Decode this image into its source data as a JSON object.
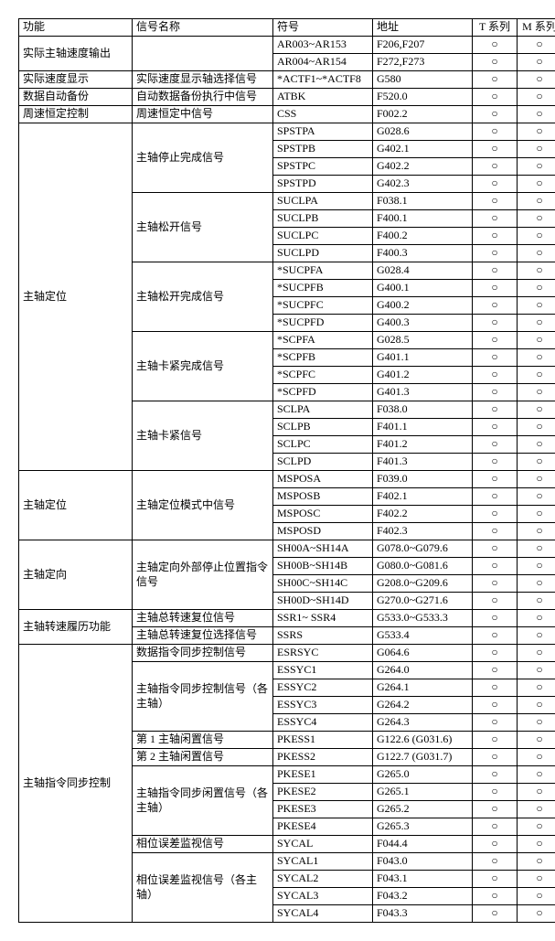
{
  "headers": [
    "功能",
    "信号名称",
    "符号",
    "地址",
    "T 系列",
    "M 系列"
  ],
  "rows": [
    {
      "f": "实际主轴速度输出",
      "fspan": 2,
      "s": "",
      "sspan": 2,
      "y": "AR003~AR153",
      "a": "F206,F207",
      "t": "○",
      "m": "○"
    },
    {
      "y": "AR004~AR154",
      "a": "F272,F273",
      "t": "○",
      "m": "○"
    },
    {
      "f": "实际速度显示",
      "fspan": 1,
      "s": "实际速度显示轴选择信号",
      "sspan": 1,
      "y": "*ACTF1~*ACTF8",
      "a": "G580",
      "t": "○",
      "m": "○"
    },
    {
      "f": "数据自动备份",
      "fspan": 1,
      "s": "自动数据备份执行中信号",
      "sspan": 1,
      "y": "ATBK",
      "a": "F520.0",
      "t": "○",
      "m": "○"
    },
    {
      "f": "周速恒定控制",
      "fspan": 1,
      "s": "周速恒定中信号",
      "sspan": 1,
      "y": "CSS",
      "a": "F002.2",
      "t": "○",
      "m": "○"
    },
    {
      "f": "主轴定位",
      "fspan": 20,
      "s": "主轴停止完成信号",
      "sspan": 4,
      "y": "SPSTPA",
      "a": "G028.6",
      "t": "○",
      "m": "○"
    },
    {
      "y": "SPSTPB",
      "a": "G402.1",
      "t": "○",
      "m": "○"
    },
    {
      "y": "SPSTPC",
      "a": "G402.2",
      "t": "○",
      "m": "○"
    },
    {
      "y": "SPSTPD",
      "a": "G402.3",
      "t": "○",
      "m": "○"
    },
    {
      "s": "主轴松开信号",
      "sspan": 4,
      "y": "SUCLPA",
      "a": "F038.1",
      "t": "○",
      "m": "○"
    },
    {
      "y": "SUCLPB",
      "a": "F400.1",
      "t": "○",
      "m": "○"
    },
    {
      "y": "SUCLPC",
      "a": "F400.2",
      "t": "○",
      "m": "○"
    },
    {
      "y": "SUCLPD",
      "a": "F400.3",
      "t": "○",
      "m": "○"
    },
    {
      "s": "主轴松开完成信号",
      "sspan": 4,
      "y": "*SUCPFA",
      "a": "G028.4",
      "t": "○",
      "m": "○"
    },
    {
      "y": "*SUCPFB",
      "a": "G400.1",
      "t": "○",
      "m": "○"
    },
    {
      "y": "*SUCPFC",
      "a": "G400.2",
      "t": "○",
      "m": "○"
    },
    {
      "y": "*SUCPFD",
      "a": "G400.3",
      "t": "○",
      "m": "○"
    },
    {
      "s": "主轴卡紧完成信号",
      "sspan": 4,
      "y": "*SCPFA",
      "a": "G028.5",
      "t": "○",
      "m": "○"
    },
    {
      "y": "*SCPFB",
      "a": "G401.1",
      "t": "○",
      "m": "○"
    },
    {
      "y": "*SCPFC",
      "a": "G401.2",
      "t": "○",
      "m": "○"
    },
    {
      "y": "*SCPFD",
      "a": "G401.3",
      "t": "○",
      "m": "○"
    },
    {
      "s": "主轴卡紧信号",
      "sspan": 4,
      "y": "SCLPA",
      "a": "F038.0",
      "t": "○",
      "m": "○"
    },
    {
      "y": "SCLPB",
      "a": "F401.1",
      "t": "○",
      "m": "○"
    },
    {
      "y": "SCLPC",
      "a": "F401.2",
      "t": "○",
      "m": "○"
    },
    {
      "y": "SCLPD",
      "a": "F401.3",
      "t": "○",
      "m": "○"
    },
    {
      "f": "主轴定位",
      "fspan": 4,
      "s": "主轴定位模式中信号",
      "sspan": 4,
      "y": "MSPOSA",
      "a": "F039.0",
      "t": "○",
      "m": "○"
    },
    {
      "y": "MSPOSB",
      "a": "F402.1",
      "t": "○",
      "m": "○"
    },
    {
      "y": "MSPOSC",
      "a": "F402.2",
      "t": "○",
      "m": "○"
    },
    {
      "y": "MSPOSD",
      "a": "F402.3",
      "t": "○",
      "m": "○"
    },
    {
      "f": "主轴定向",
      "fspan": 4,
      "s": "主轴定向外部停止位置指令信号",
      "sspan": 4,
      "y": "SH00A~SH14A",
      "a": "G078.0~G079.6",
      "t": "○",
      "m": "○"
    },
    {
      "y": "SH00B~SH14B",
      "a": "G080.0~G081.6",
      "t": "○",
      "m": "○"
    },
    {
      "y": "SH00C~SH14C",
      "a": "G208.0~G209.6",
      "t": "○",
      "m": "○"
    },
    {
      "y": "SH00D~SH14D",
      "a": "G270.0~G271.6",
      "t": "○",
      "m": "○"
    },
    {
      "f": "主轴转速履历功能",
      "fspan": 2,
      "s": "主轴总转速复位信号",
      "sspan": 1,
      "y": "SSR1~ SSR4",
      "a": "G533.0~G533.3",
      "t": "○",
      "m": "○"
    },
    {
      "s": "主轴总转速复位选择信号",
      "sspan": 1,
      "y": "SSRS",
      "a": "G533.4",
      "t": "○",
      "m": "○"
    },
    {
      "f": "主轴指令同步控制",
      "fspan": 16,
      "s": "数据指令同步控制信号",
      "sspan": 1,
      "y": "ESRSYC",
      "a": "G064.6",
      "t": "○",
      "m": "○"
    },
    {
      "s": "主轴指令同步控制信号（各主轴）",
      "sspan": 4,
      "y": "ESSYC1",
      "a": "G264.0",
      "t": "○",
      "m": "○"
    },
    {
      "y": "ESSYC2",
      "a": "G264.1",
      "t": "○",
      "m": "○"
    },
    {
      "y": "ESSYC3",
      "a": "G264.2",
      "t": "○",
      "m": "○"
    },
    {
      "y": "ESSYC4",
      "a": "G264.3",
      "t": "○",
      "m": "○"
    },
    {
      "s": "第 1 主轴闲置信号",
      "sspan": 1,
      "y": "PKESS1",
      "a": "G122.6 (G031.6)",
      "t": "○",
      "m": "○"
    },
    {
      "s": "第 2 主轴闲置信号",
      "sspan": 1,
      "y": "PKESS2",
      "a": "G122.7 (G031.7)",
      "t": "○",
      "m": "○"
    },
    {
      "s": "主轴指令同步闲置信号（各主轴）",
      "sspan": 4,
      "y": "PKESE1",
      "a": "G265.0",
      "t": "○",
      "m": "○"
    },
    {
      "y": "PKESE2",
      "a": "G265.1",
      "t": "○",
      "m": "○"
    },
    {
      "y": "PKESE3",
      "a": "G265.2",
      "t": "○",
      "m": "○"
    },
    {
      "y": "PKESE4",
      "a": "G265.3",
      "t": "○",
      "m": "○"
    },
    {
      "s": "相位误差监视信号",
      "sspan": 1,
      "y": "SYCAL",
      "a": "F044.4",
      "t": "○",
      "m": "○"
    },
    {
      "s": "相位误差监视信号（各主轴）",
      "sspan": 4,
      "y": "SYCAL1",
      "a": "F043.0",
      "t": "○",
      "m": "○"
    },
    {
      "y": "SYCAL2",
      "a": "F043.1",
      "t": "○",
      "m": "○"
    },
    {
      "y": "SYCAL3",
      "a": "F043.2",
      "t": "○",
      "m": "○"
    },
    {
      "y": "SYCAL4",
      "a": "F043.3",
      "t": "○",
      "m": "○"
    }
  ]
}
